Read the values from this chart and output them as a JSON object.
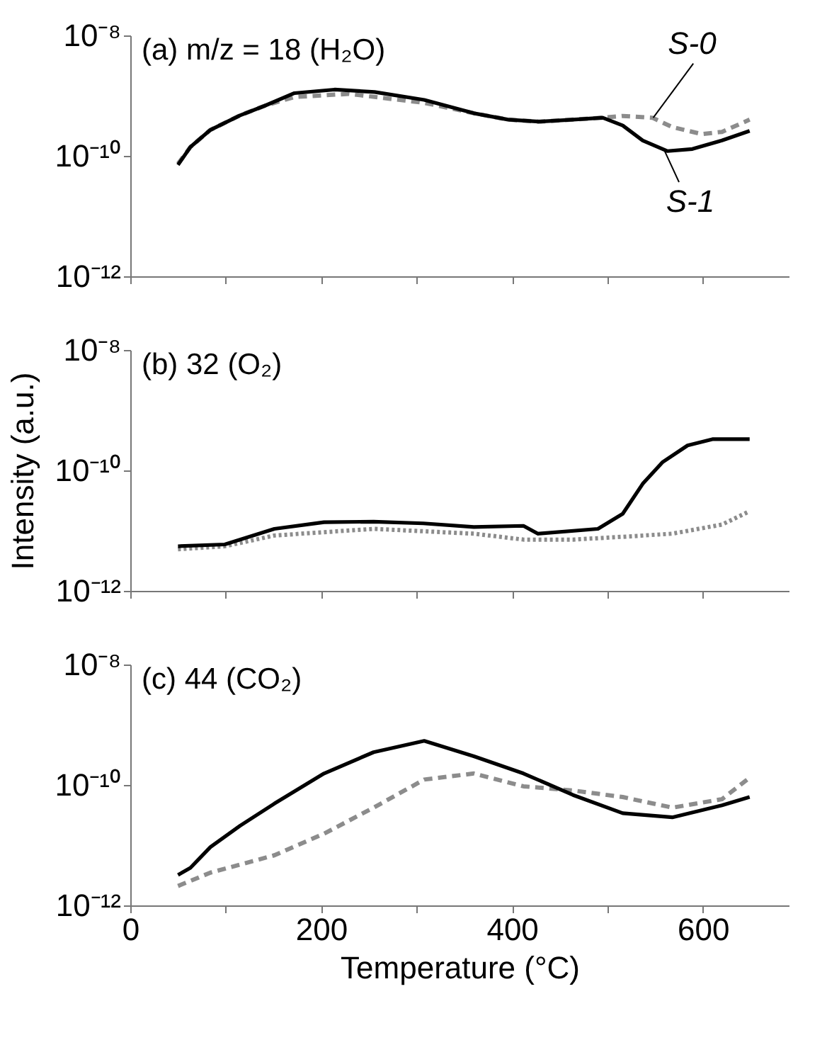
{
  "chart_data": [
    {
      "type": "line",
      "title": "(a) m/z = 18 (H₂O)",
      "xlim": [
        0,
        690
      ],
      "ylim": [
        1e-12,
        1e-08
      ],
      "log": "y",
      "grid": false,
      "tick_labels": "y",
      "xticks": [
        0,
        {
          "value": 100,
          "label": null
        },
        {
          "value": 200,
          "label": null
        },
        {
          "value": 300,
          "label": null
        },
        {
          "value": 400,
          "label": null
        },
        {
          "value": 500,
          "label": null
        },
        {
          "value": 600,
          "label": null
        }
      ],
      "yticks": [
        {
          "value": 1e-12,
          "label": "10⁻¹²"
        },
        {
          "value": 1e-10,
          "label": "10⁻¹⁰"
        },
        {
          "value": 1e-08,
          "label": "10⁻⁸"
        }
      ],
      "series": [
        {
          "color": "#8c8c8c",
          "line_style": "dashed",
          "x": [
            50,
            63,
            84,
            115,
            141,
            172,
            229,
            308,
            360,
            396,
            428,
            464,
            495,
            516,
            547,
            568,
            599,
            620,
            649
          ],
          "values": [
            7.4e-11,
            1.4e-10,
            2.7e-10,
            4.7e-10,
            6.8e-10,
            9.5e-10,
            1.07e-09,
            7.6e-10,
            5.1e-10,
            4e-10,
            3.7e-10,
            4e-10,
            4.3e-10,
            4.6e-10,
            4.3e-10,
            3e-10,
            2.3e-10,
            2.5e-10,
            4e-10
          ]
        },
        {
          "color": "#000000",
          "line_style": "solid",
          "x": [
            50,
            63,
            84,
            115,
            141,
            172,
            214,
            256,
            308,
            360,
            396,
            428,
            464,
            495,
            516,
            537,
            563,
            589,
            620,
            649
          ],
          "values": [
            7.1e-11,
            1.4e-10,
            2.7e-10,
            4.7e-10,
            6.8e-10,
            1.1e-09,
            1.26e-09,
            1.15e-09,
            8.5e-10,
            5.1e-10,
            4e-10,
            3.7e-10,
            4e-10,
            4.3e-10,
            3.2e-10,
            1.8e-10,
            1.2e-10,
            1.3e-10,
            1.8e-10,
            2.6e-10
          ]
        }
      ],
      "annotations": [
        {
          "text": "S-0",
          "x": 548,
          "y": 4.3e-10
        },
        {
          "text": "S-1",
          "x": 559,
          "y": 1.3e-10
        }
      ]
    },
    {
      "type": "line",
      "title": "(b) 32 (O₂)",
      "ylabel": "Intensity (a.u.)",
      "xlim": [
        0,
        690
      ],
      "ylim": [
        1e-12,
        1e-08
      ],
      "log": "y",
      "grid": false,
      "tick_labels": "y",
      "xticks": [
        0,
        {
          "value": 100,
          "label": null
        },
        {
          "value": 200,
          "label": null
        },
        {
          "value": 300,
          "label": null
        },
        {
          "value": 400,
          "label": null
        },
        {
          "value": 500,
          "label": null
        },
        {
          "value": 600,
          "label": null
        }
      ],
      "yticks": [
        {
          "value": 1e-12,
          "label": "10⁻¹²"
        },
        {
          "value": 1e-10,
          "label": "10⁻¹⁰"
        },
        {
          "value": 1e-08,
          "label": "10⁻⁸"
        }
      ],
      "series": [
        {
          "color": "#8c8c8c",
          "line_style": "dotted",
          "x": [
            50,
            99,
            151,
            255,
            360,
            412,
            464,
            516,
            568,
            620,
            649
          ],
          "values": [
            4.9e-12,
            5.5e-12,
            8.3e-12,
            1.07e-11,
            8.9e-12,
            7.1e-12,
            7.1e-12,
            7.9e-12,
            8.9e-12,
            1.26e-11,
            2.1e-11
          ]
        },
        {
          "color": "#000000",
          "line_style": "solid",
          "x": [
            50,
            99,
            151,
            203,
            255,
            307,
            360,
            412,
            427,
            490,
            516,
            537,
            558,
            584,
            610,
            649
          ],
          "values": [
            5.5e-12,
            5.9e-12,
            1.07e-11,
            1.38e-11,
            1.41e-11,
            1.32e-11,
            1.15e-11,
            1.2e-11,
            8.9e-12,
            1.07e-11,
            1.9e-11,
            6e-11,
            1.38e-10,
            2.6e-10,
            3.3e-10,
            3.3e-10
          ]
        }
      ]
    },
    {
      "type": "line",
      "title": "(c) 44 (CO₂)",
      "xlabel": "Temperature (°C)",
      "xlim": [
        0,
        690
      ],
      "ylim": [
        1e-12,
        1e-08
      ],
      "log": "y",
      "grid": false,
      "xticks": [
        0,
        {
          "value": 100,
          "label": null
        },
        200,
        {
          "value": 300,
          "label": null
        },
        400,
        {
          "value": 500,
          "label": null
        },
        600
      ],
      "yticks": [
        {
          "value": 1e-12,
          "label": "10⁻¹²"
        },
        {
          "value": 1e-10,
          "label": "10⁻¹⁰"
        },
        {
          "value": 1e-08,
          "label": "10⁻⁸"
        }
      ],
      "series": [
        {
          "color": "#8c8c8c",
          "line_style": "dashed",
          "x": [
            50,
            84,
            151,
            203,
            255,
            308,
            360,
            412,
            464,
            516,
            568,
            620,
            649
          ],
          "values": [
            2.1e-12,
            3.5e-12,
            6.8e-12,
            1.55e-11,
            4.2e-11,
            1.23e-10,
            1.55e-10,
            9.5e-11,
            8.1e-11,
            6.3e-11,
            4.2e-11,
            5.8e-11,
            1.32e-10
          ]
        },
        {
          "color": "#000000",
          "line_style": "solid",
          "x": [
            50,
            63,
            84,
            115,
            151,
            203,
            255,
            308,
            360,
            412,
            464,
            516,
            568,
            620,
            649
          ],
          "values": [
            3.2e-12,
            4.2e-12,
            9.3e-12,
            2.1e-11,
            4.9e-11,
            1.55e-10,
            3.5e-10,
            5.4e-10,
            3e-10,
            1.55e-10,
            6.8e-11,
            3.4e-11,
            2.9e-11,
            4.6e-11,
            6.3e-11
          ]
        }
      ]
    }
  ]
}
